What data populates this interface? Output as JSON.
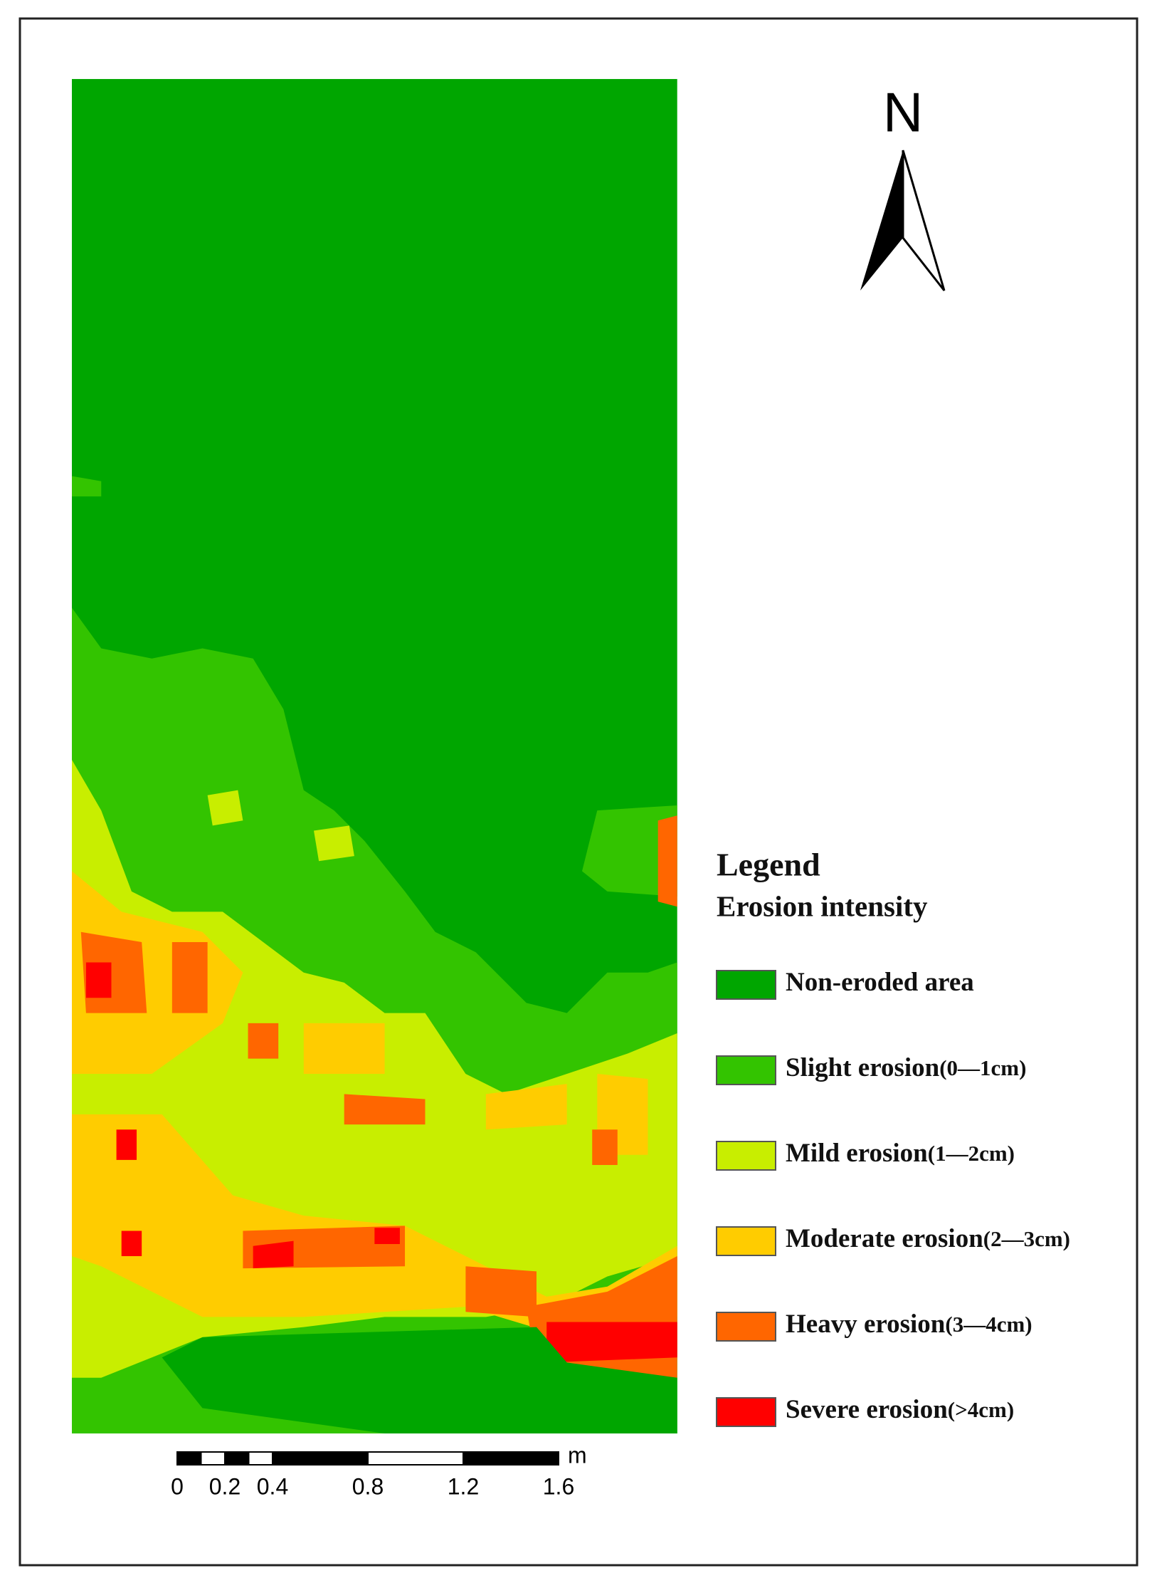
{
  "north_label": "N",
  "legend": {
    "title": "Legend",
    "subtitle": "Erosion intensity",
    "items": [
      {
        "name": "Non-eroded area",
        "color": "#00a600"
      },
      {
        "name": "Slight erosion",
        "range": "(0—1cm)",
        "color": "#33c400"
      },
      {
        "name": "Mild erosion",
        "range": "(1—2cm)",
        "color": "#c8ee00"
      },
      {
        "name": "Moderate erosion",
        "range": "(2—3cm)",
        "color": "#ffcc00"
      },
      {
        "name": "Heavy erosion",
        "range": "(3—4cm)",
        "color": "#ff6600"
      },
      {
        "name": "Severe erosion",
        "range": "(>4cm)",
        "color": "#ff0000"
      }
    ]
  },
  "scale_bar": {
    "ticks": [
      0,
      0.2,
      0.4,
      0.8,
      1.2,
      1.6
    ],
    "unit": "m"
  }
}
